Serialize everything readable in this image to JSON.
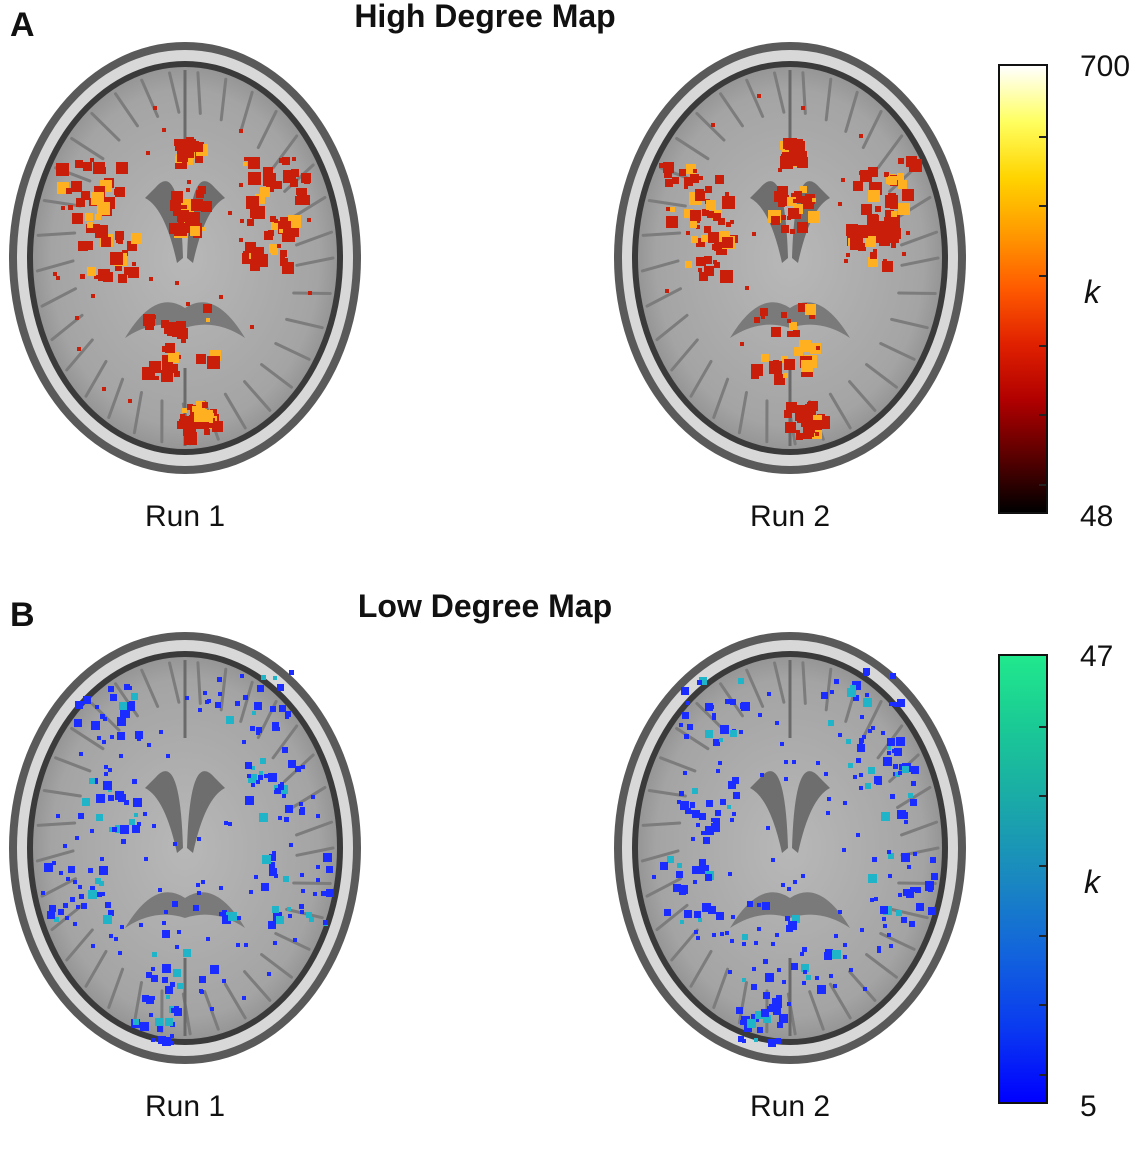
{
  "panels": [
    {
      "id": "A",
      "letter": "A",
      "title": "High Degree Map",
      "runs": [
        "Run 1",
        "Run 2"
      ],
      "colorbar": {
        "max": "700",
        "min": "48",
        "label": "k",
        "colors": [
          "#000000",
          "#5a0000",
          "#b00000",
          "#e02000",
          "#ff5a00",
          "#ff9a00",
          "#ffd400",
          "#ffff60",
          "#ffffff"
        ]
      },
      "overlay_color": "#c81e0a",
      "highlight_color": "#ffb020"
    },
    {
      "id": "B",
      "letter": "B",
      "title": "Low Degree Map",
      "runs": [
        "Run 1",
        "Run 2"
      ],
      "colorbar": {
        "max": "47",
        "min": "5",
        "label": "k",
        "colors": [
          "#0000ff",
          "#0a3af0",
          "#1264dc",
          "#1a88c0",
          "#1aa8a8",
          "#1ac896",
          "#20e88c"
        ]
      },
      "overlay_color": "#1a2cff",
      "highlight_color": "#20b4c8"
    }
  ]
}
